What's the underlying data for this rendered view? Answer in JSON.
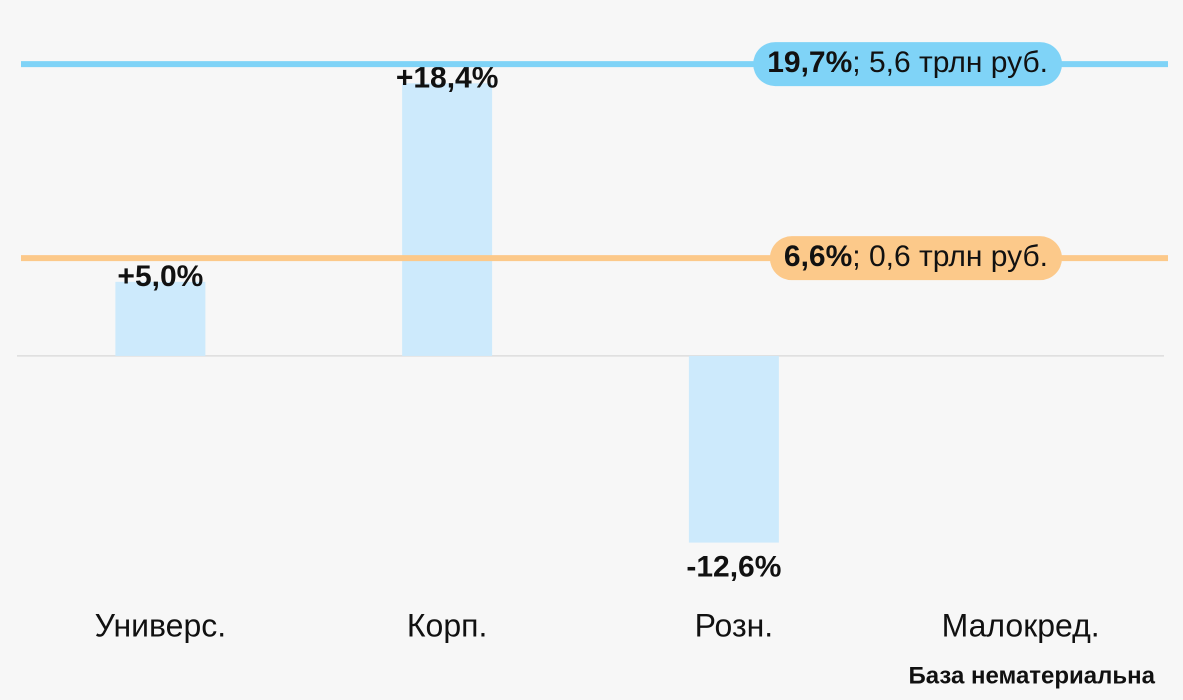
{
  "chart_data": {
    "type": "bar",
    "categories": [
      "Универс.",
      "Корп.",
      "Розн.",
      "Малокред."
    ],
    "values": [
      5.0,
      18.4,
      -12.6,
      null
    ],
    "value_labels": [
      "+5,0%",
      "+18,4%",
      "-12,6%",
      null
    ],
    "color": "#cdeafc",
    "ylim": [
      -15.8,
      22
    ],
    "reference_lines": [
      {
        "value": 19.7,
        "label": "19,7%",
        "note": "; 5,6 трлн руб.",
        "color": "#7fd3f7"
      },
      {
        "value": 6.6,
        "label": "6,6%",
        "note": "; 0,6 трлн руб.",
        "color": "#fcc98a"
      }
    ],
    "footnote": "База нематериальна"
  }
}
